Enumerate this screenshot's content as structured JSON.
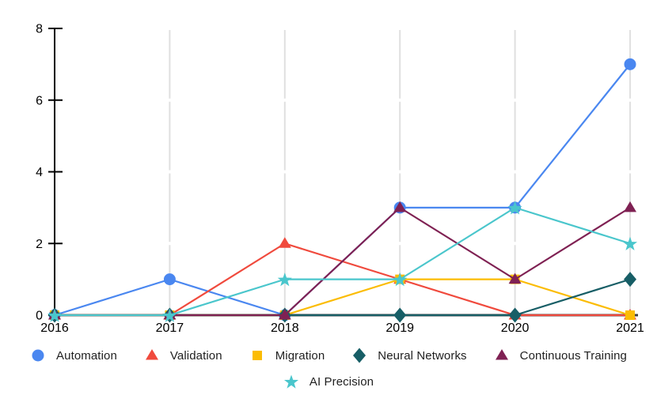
{
  "chart_data": {
    "type": "line",
    "x": [
      2016,
      2017,
      2018,
      2019,
      2020,
      2021
    ],
    "series": [
      {
        "name": "Automation",
        "marker": "circle",
        "color": "#4A87F0",
        "values": [
          0,
          1,
          0,
          3,
          3,
          7
        ]
      },
      {
        "name": "Validation",
        "marker": "triangle",
        "color": "#F04A3D",
        "values": [
          0,
          0,
          2,
          1,
          0,
          0
        ]
      },
      {
        "name": "Migration",
        "marker": "square",
        "color": "#FBBC04",
        "values": [
          0,
          0,
          0,
          1,
          1,
          0
        ]
      },
      {
        "name": "Neural Networks",
        "marker": "diamond",
        "color": "#175E66",
        "values": [
          0,
          0,
          0,
          0,
          0,
          1
        ]
      },
      {
        "name": "Continuous Training",
        "marker": "triangle",
        "color": "#7F2153",
        "values": [
          0,
          0,
          0,
          3,
          1,
          3
        ]
      },
      {
        "name": "AI Precision",
        "marker": "star",
        "color": "#4AC6CC",
        "values": [
          0,
          0,
          1,
          1,
          3,
          2
        ]
      }
    ],
    "title": "",
    "xlabel": "",
    "ylabel": "",
    "ylim": [
      0,
      8
    ],
    "y_ticks": [
      0,
      2,
      4,
      6,
      8
    ],
    "grid": "vertical-gridlines-at-years",
    "legend_position": "bottom"
  },
  "colors": {
    "background": "#ffffff",
    "y_axis": "#000000",
    "x_baseline": "#3f3f3f",
    "gridline": "#e0e0e0",
    "tick_text": "#000000",
    "legend_text": "#1f1f1f"
  }
}
